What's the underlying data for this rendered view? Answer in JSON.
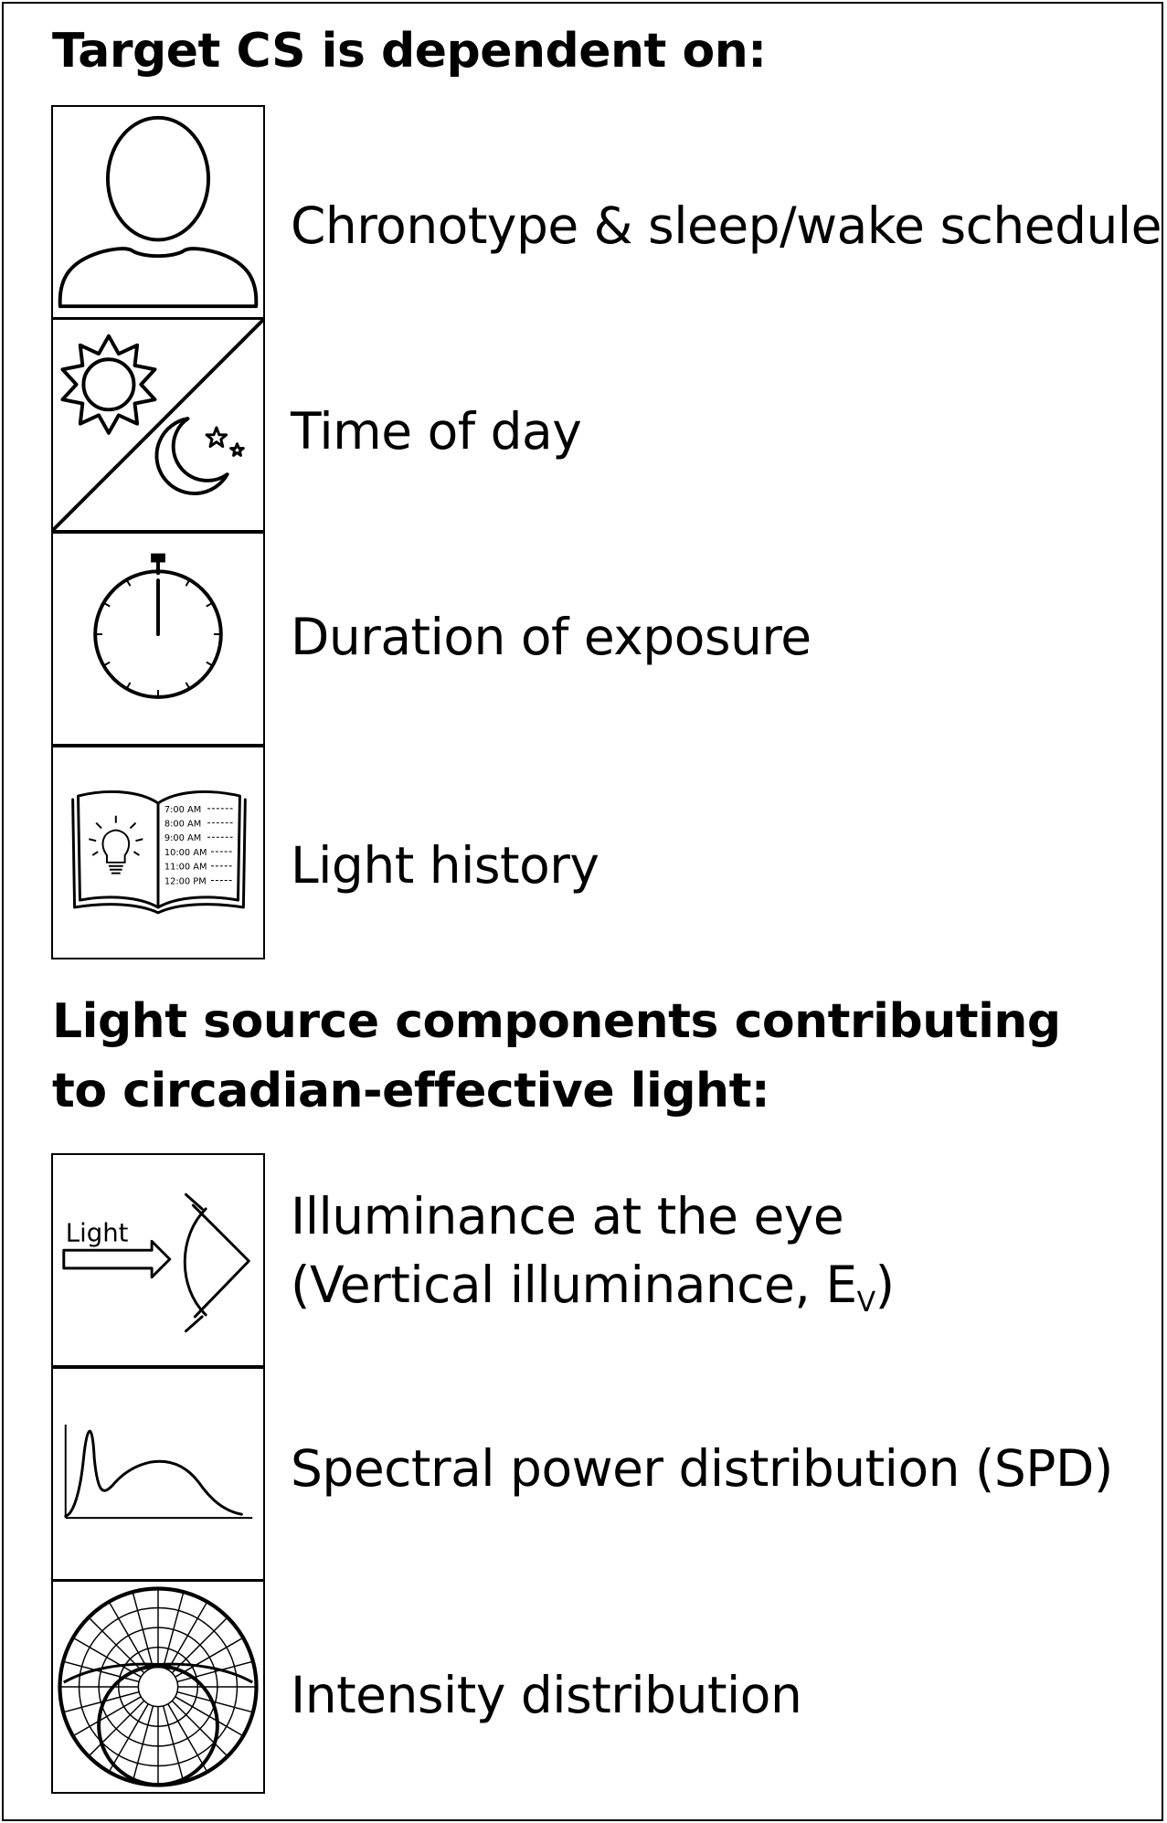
{
  "section1": {
    "heading": "Target CS is dependent on:",
    "items": [
      {
        "icon": "person-icon",
        "label": "Chronotype & sleep/wake schedule"
      },
      {
        "icon": "sun-moon-icon",
        "label": "Time of day"
      },
      {
        "icon": "stopwatch-icon",
        "label": "Duration of exposure"
      },
      {
        "icon": "book-lightbulb-icon",
        "label": "Light history",
        "book_times": [
          "7:00 AM",
          "8:00 AM",
          "9:00 AM",
          "10:00 AM",
          "11:00 AM",
          "12:00 PM"
        ]
      }
    ]
  },
  "section2": {
    "heading": "Light source components contributing to circadian-effective light:",
    "items": [
      {
        "icon": "light-to-eye-icon",
        "label_line1": "Illuminance at the eye",
        "label_line2_prefix": "(Vertical illuminance, E",
        "label_line2_sub": "V",
        "label_line2_suffix": ")",
        "icon_text": "Light"
      },
      {
        "icon": "spd-curve-icon",
        "label": "Spectral power distribution (SPD)"
      },
      {
        "icon": "polar-distribution-icon",
        "label": "Intensity distribution"
      }
    ]
  }
}
